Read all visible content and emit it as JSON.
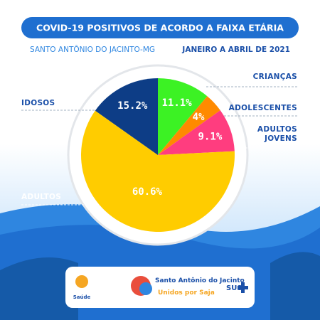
{
  "chart_data": {
    "type": "pie",
    "title": "COVID-19 POSITIVOS DE ACORDO A FAIXA ETÁRIA",
    "subtitle": "SANTO ANTÔNIO DO JACINTO-MG",
    "period": "JANEIRO A ABRIL DE 2021",
    "categories": [
      "CRIANÇAS",
      "ADOLESCENTES",
      "ADULTOS JOVENS",
      "ADULTOS",
      "IDOSOS"
    ],
    "values": [
      11.1,
      4,
      9.1,
      60.6,
      15.2
    ],
    "value_labels": [
      "11.1%",
      "4%",
      "9.1%",
      "60.6%",
      "15.2%"
    ],
    "colors": [
      "#3cf224",
      "#ff8a00",
      "#ff3d7f",
      "#ffcc00",
      "#0d3d86"
    ]
  },
  "footer": {
    "health": "Saúde",
    "brand": "Santo Antônio do Jacinto",
    "slogan": "Unidos por Saja",
    "sus": "SUS"
  }
}
